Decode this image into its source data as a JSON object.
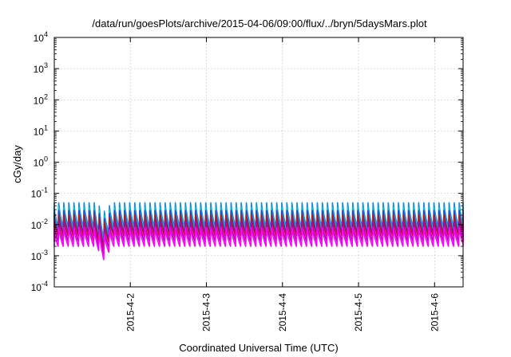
{
  "chart_data": {
    "type": "line",
    "title": "/data/run/goesPlots/archive/2015-04-06/09:00/flux/../bryn/5daysMars.plot",
    "xlabel": "Coordinated Universal Time (UTC)",
    "ylabel": "cGy/day",
    "y_scale": "log",
    "ylim": [
      0.0001,
      10000
    ],
    "y_ticks": [
      {
        "value": 0.0001,
        "base": "10",
        "exp": "-4"
      },
      {
        "value": 0.001,
        "base": "10",
        "exp": "-3"
      },
      {
        "value": 0.01,
        "base": "10",
        "exp": "-2"
      },
      {
        "value": 0.1,
        "base": "10",
        "exp": "-1"
      },
      {
        "value": 1,
        "base": "10",
        "exp": "0"
      },
      {
        "value": 10,
        "base": "10",
        "exp": "1"
      },
      {
        "value": 100,
        "base": "10",
        "exp": "2"
      },
      {
        "value": 1000,
        "base": "10",
        "exp": "3"
      },
      {
        "value": 10000,
        "base": "10",
        "exp": "4"
      }
    ],
    "xlim": [
      "2015-04-01T00:00",
      "2015-04-06T09:00"
    ],
    "x_ticks": [
      {
        "value": "2015-04-02T00:00",
        "label": "2015-4-2"
      },
      {
        "value": "2015-04-03T00:00",
        "label": "2015-4-3"
      },
      {
        "value": "2015-04-04T00:00",
        "label": "2015-4-4"
      },
      {
        "value": "2015-04-05T00:00",
        "label": "2015-4-5"
      },
      {
        "value": "2015-04-06T00:00",
        "label": "2015-4-6"
      }
    ],
    "grid": true,
    "series": [
      {
        "color": "#1a8ad8",
        "peak": 0.05,
        "trough": 0.008,
        "min_dip": 0.003
      },
      {
        "color": "#00c8c8",
        "peak": 0.035,
        "trough": 0.006,
        "min_dip": 0.0022
      },
      {
        "color": "#3040c0",
        "peak": 0.028,
        "trough": 0.005,
        "min_dip": 0.0018
      },
      {
        "color": "#c81020",
        "peak": 0.02,
        "trough": 0.004,
        "min_dip": 0.0014
      },
      {
        "color": "#b000b0",
        "peak": 0.012,
        "trough": 0.0028,
        "min_dip": 0.001
      },
      {
        "color": "#ff00ff",
        "peak": 0.008,
        "trough": 0.002,
        "min_dip": 0.0007
      }
    ],
    "period_hours": 1.6
  }
}
